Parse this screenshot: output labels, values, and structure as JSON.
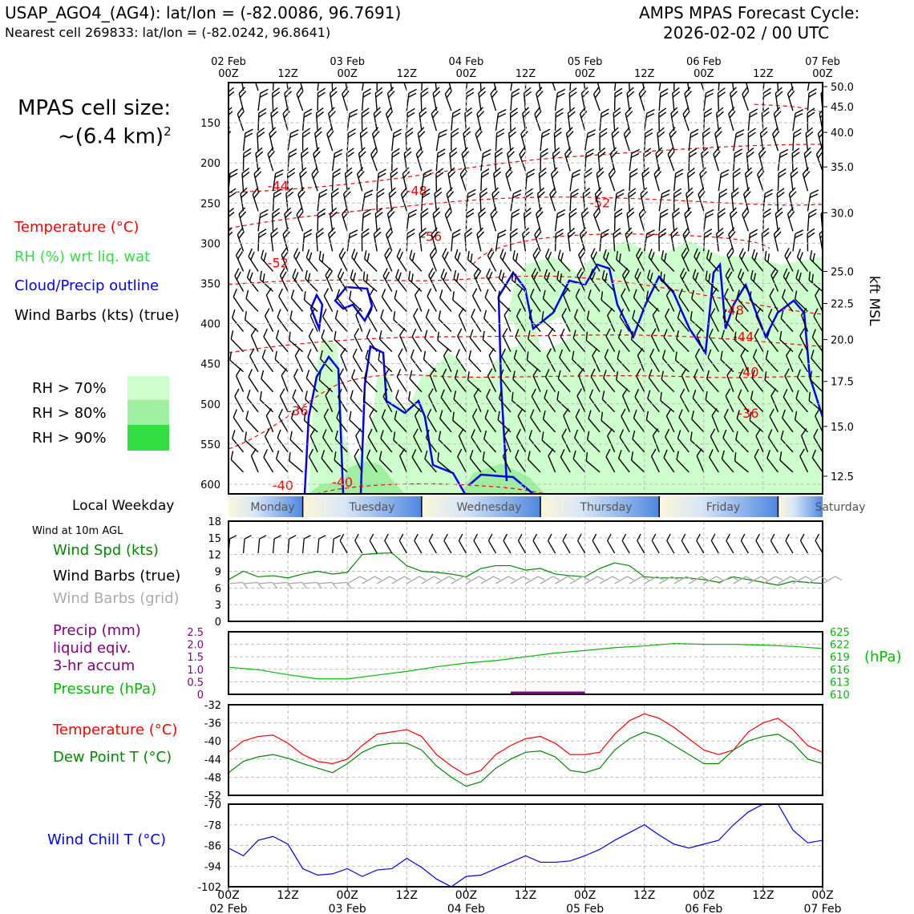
{
  "header": {
    "station": "USAP_AGO4_(AG4): lat/lon = (-82.0086, 96.7691)",
    "nearest": "Nearest cell 269833: lat/lon = (-82.0242, 96.8641)",
    "cycle_line1": "AMPS MPAS Forecast Cycle:",
    "cycle_line2": "2026-02-02 / 00 UTC"
  },
  "cell_size": {
    "line1": "MPAS cell size:",
    "line2": "~(6.4 km)",
    "sup": "2"
  },
  "legend_upper": {
    "temperature": "Temperature (°C)",
    "rh": "RH (%) wrt liq. wat",
    "cloud": "Cloud/Precip outline",
    "barbs": "Wind Barbs (kts) (true)",
    "rh70": "RH > 70%",
    "rh80": "RH > 80%",
    "rh90": "RH > 90%"
  },
  "colors": {
    "temp": "#ff0000",
    "rh70": "#ccffcc",
    "rh80": "#a0eea0",
    "rh90": "#33dd44",
    "cloud": "#0000ee",
    "wind_spd": "#008800",
    "barb_grid": "#aaaaaa",
    "precip": "#800080",
    "pressure": "#00bb00",
    "dewpoint": "#008800",
    "windchill": "#0000ee"
  },
  "time_axis": {
    "top_dates": [
      "02 Feb",
      "",
      "03 Feb",
      "",
      "04 Feb",
      "",
      "05 Feb",
      "",
      "06 Feb",
      "",
      "07 Feb"
    ],
    "hour_labels": [
      "00Z",
      "12Z",
      "00Z",
      "12Z",
      "00Z",
      "12Z",
      "00Z",
      "12Z",
      "00Z",
      "12Z",
      "00Z"
    ],
    "bottom_dates": [
      "02 Feb",
      "",
      "03 Feb",
      "",
      "04 Feb",
      "",
      "05 Feb",
      "",
      "06 Feb",
      "",
      "07 Feb"
    ]
  },
  "weekday": {
    "label": "Local Weekday",
    "days": [
      "Monday",
      "Tuesday",
      "Wednesday",
      "Thursday",
      "Friday",
      "Saturday"
    ]
  },
  "panel_wind": {
    "title": "Wind at 10m AGL",
    "spd_label": "Wind Spd (kts)",
    "barbs_true": "Wind Barbs (true)",
    "barbs_grid": "Wind Barbs (grid)"
  },
  "panel_precip": {
    "precip_label_1": "Precip (mm)",
    "precip_label_2": "liquid eqiv.",
    "precip_label_3": "3-hr accum",
    "pressure_label": "Pressure (hPa)",
    "unit": "(hPa)"
  },
  "panel_temp": {
    "temp_label": "Temperature (°C)",
    "dew_label": "Dew Point T (°C)"
  },
  "panel_chill": {
    "label": "Wind Chill T (°C)"
  },
  "upper_axis": {
    "right_label": "kft MSL"
  },
  "chart_data": [
    {
      "type": "heatmap",
      "x_hours": [
        0,
        120
      ],
      "y_pressure_ticks": [
        150,
        200,
        250,
        300,
        350,
        400,
        450,
        500,
        550,
        600
      ],
      "y_kft_ticks": [
        "50.0",
        "45.0",
        "40.0",
        "35.0",
        "30.0",
        "25.0",
        "22.5",
        "20.0",
        "17.5",
        "15.0",
        "12.5"
      ],
      "y_kft_pressures": [
        105,
        130,
        162,
        205,
        262,
        335,
        375,
        420,
        472,
        528,
        590
      ],
      "ylim": [
        100,
        612
      ],
      "temp_contour_labels": [
        {
          "t": 10,
          "p": 234,
          "v": "-44"
        },
        {
          "t": 38,
          "p": 240,
          "v": "-48"
        },
        {
          "t": 75,
          "p": 255,
          "v": "-52"
        },
        {
          "t": 41,
          "p": 297,
          "v": "-56"
        },
        {
          "t": 10,
          "p": 330,
          "v": "-52"
        },
        {
          "t": 102,
          "p": 389,
          "v": "-48"
        },
        {
          "t": 104,
          "p": 422,
          "v": "-44"
        },
        {
          "t": 105,
          "p": 466,
          "v": "-40"
        },
        {
          "t": 14,
          "p": 514,
          "v": "-36"
        },
        {
          "t": 105,
          "p": 517,
          "v": "-36"
        },
        {
          "t": 11,
          "p": 607,
          "v": "-40"
        },
        {
          "t": 23,
          "p": 603,
          "v": "-40"
        }
      ]
    },
    {
      "type": "line",
      "x": [
        0,
        3,
        6,
        9,
        12,
        15,
        18,
        21,
        24,
        27,
        30,
        33,
        36,
        39,
        42,
        45,
        48,
        51,
        54,
        57,
        60,
        63,
        66,
        69,
        72,
        75,
        78,
        81,
        84,
        87,
        90,
        93,
        96,
        99,
        102,
        105,
        108,
        111,
        114,
        117,
        120
      ],
      "series": [
        {
          "values": [
            7.5,
            9.0,
            8.0,
            8.2,
            7.8,
            8.5,
            9.0,
            8.5,
            8.8,
            12.0,
            12.2,
            12.3,
            10.0,
            9.0,
            8.8,
            8.5,
            8.0,
            9.5,
            10.0,
            10.0,
            9.2,
            9.5,
            8.5,
            8.2,
            8.0,
            9.5,
            10.5,
            10.0,
            8.0,
            7.8,
            7.8,
            7.8,
            7.5,
            7.0,
            8.0,
            7.5,
            7.0,
            6.5,
            7.2,
            7.0,
            6.8
          ]
        }
      ],
      "ylim": [
        0,
        18
      ],
      "yticks": [
        0,
        3,
        6,
        9,
        12,
        15,
        18
      ]
    },
    {
      "type": "line",
      "x": [
        0,
        6,
        12,
        18,
        24,
        30,
        36,
        42,
        48,
        54,
        60,
        66,
        72,
        78,
        84,
        90,
        96,
        102,
        108,
        114,
        120
      ],
      "series": [
        {
          "values": [
            616.5,
            615.9,
            614.7,
            613.7,
            613.7,
            614.6,
            615.5,
            616.6,
            617.5,
            618.1,
            619.0,
            619.9,
            620.5,
            621.2,
            621.6,
            622.2,
            622.0,
            622.0,
            621.8,
            621.5,
            621.0
          ]
        }
      ],
      "ylim": [
        610,
        625
      ],
      "yticks_pressure": [
        610,
        613,
        616,
        619,
        622,
        625
      ],
      "yticks_precip": [
        "0",
        "0.5",
        "1.0",
        "1.5",
        "2.0",
        "2.5"
      ],
      "precip_ylim": [
        0,
        2.5
      ]
    },
    {
      "type": "line",
      "x": [
        0,
        3,
        6,
        9,
        12,
        15,
        18,
        21,
        24,
        27,
        30,
        33,
        36,
        39,
        42,
        45,
        48,
        51,
        54,
        57,
        60,
        63,
        66,
        69,
        72,
        75,
        78,
        81,
        84,
        87,
        90,
        93,
        96,
        99,
        102,
        105,
        108,
        111,
        114,
        117,
        120
      ],
      "series": [
        {
          "values": [
            -42.5,
            -40,
            -39,
            -38.7,
            -40.5,
            -43,
            -44.5,
            -45,
            -44,
            -41,
            -38.5,
            -38,
            -37.5,
            -39,
            -43,
            -45.5,
            -47.5,
            -46.5,
            -43,
            -41,
            -39.5,
            -39,
            -40.5,
            -43,
            -43,
            -42.5,
            -38.5,
            -35.5,
            -34,
            -35,
            -37,
            -39.5,
            -42,
            -43,
            -42,
            -38,
            -36,
            -35,
            -37.5,
            -41,
            -42.5
          ]
        },
        {
          "values": [
            -47,
            -44.5,
            -43.5,
            -43,
            -43.8,
            -45,
            -46,
            -47,
            -45,
            -42.5,
            -41,
            -40.5,
            -40.5,
            -42,
            -45.5,
            -48,
            -50,
            -49,
            -46,
            -44,
            -42.5,
            -42.2,
            -43.5,
            -46.5,
            -47,
            -46,
            -42,
            -39.5,
            -38,
            -39,
            -41,
            -43,
            -45,
            -45,
            -42,
            -40,
            -39,
            -38.5,
            -40.5,
            -44,
            -45
          ]
        }
      ],
      "ylim": [
        -52,
        -32
      ],
      "yticks": [
        -52,
        -48,
        -44,
        -40,
        -36,
        -32
      ]
    },
    {
      "type": "line",
      "x": [
        0,
        3,
        6,
        9,
        12,
        15,
        18,
        21,
        24,
        27,
        30,
        33,
        36,
        39,
        42,
        45,
        48,
        51,
        54,
        57,
        60,
        63,
        66,
        69,
        72,
        75,
        78,
        81,
        84,
        87,
        90,
        93,
        96,
        99,
        102,
        105,
        108,
        111,
        114,
        117,
        120
      ],
      "series": [
        {
          "values": [
            -87,
            -90,
            -84,
            -82.5,
            -85.5,
            -95,
            -97.5,
            -97,
            -95,
            -98,
            -95.5,
            -95,
            -91,
            -94.5,
            -99,
            -102,
            -98,
            -97.5,
            -95,
            -92.5,
            -90,
            -92.5,
            -92.5,
            -92,
            -90,
            -87.5,
            -84,
            -81,
            -78,
            -82,
            -85.5,
            -87,
            -85.5,
            -84,
            -78,
            -73,
            -70,
            -70,
            -80,
            -85,
            -84
          ]
        }
      ],
      "ylim": [
        -102,
        -70
      ],
      "yticks": [
        -102,
        -94,
        -86,
        -78,
        -70
      ]
    }
  ]
}
